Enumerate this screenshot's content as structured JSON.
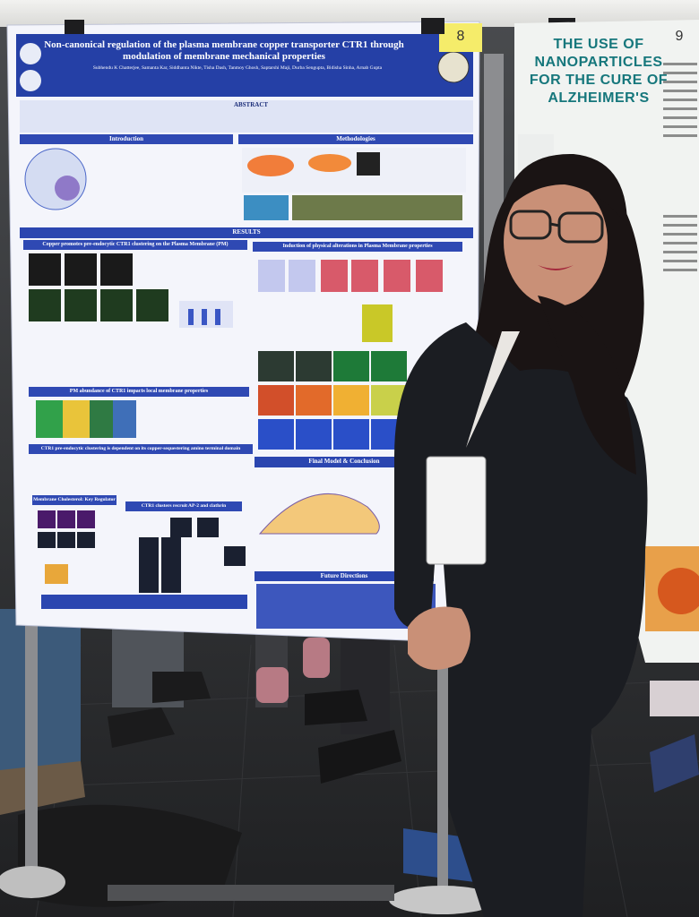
{
  "poster": {
    "title": "Non-canonical regulation of the plasma membrane copper transporter CTR1 through modulation of membrane mechanical properties",
    "authors": "Subhendu K Chatterjee, Samanta Kar, Siddhanta Nikte, Tisha Dash, Tanmoy Ghosh, Saptarshi Maji, Durba Sengupta, Bidisha Sinha, Arnab Gupta",
    "sections": {
      "abstract": "ABSTRACT",
      "introduction": "Introduction",
      "methodologies": "Methodologies",
      "results": "RESULTS",
      "clustering": "Copper promotes pre-endocytic CTR1 clustering on the Plasma Membrane (PM)",
      "induction": "Induction of physical alterations in Plasma Membrane properties",
      "abundance": "PM abundance of CTR1 impacts local membrane properties",
      "domain": "CTR1 pre-endocytic clustering is dependent on its copper-sequestering amino terminal domain",
      "cholesterol": "Membrane Cholesterol: Key Regulator",
      "clathrin": "CTR1 clusters recruit AP-2 and clathrin",
      "model": "Final Model & Conclusion",
      "future": "Future Directions"
    },
    "board_number": "8"
  },
  "neighbor_poster": {
    "title": "THE USE OF NANOPARTICLES FOR THE CURE OF ALZHEIMER'S",
    "board_number": "9"
  }
}
